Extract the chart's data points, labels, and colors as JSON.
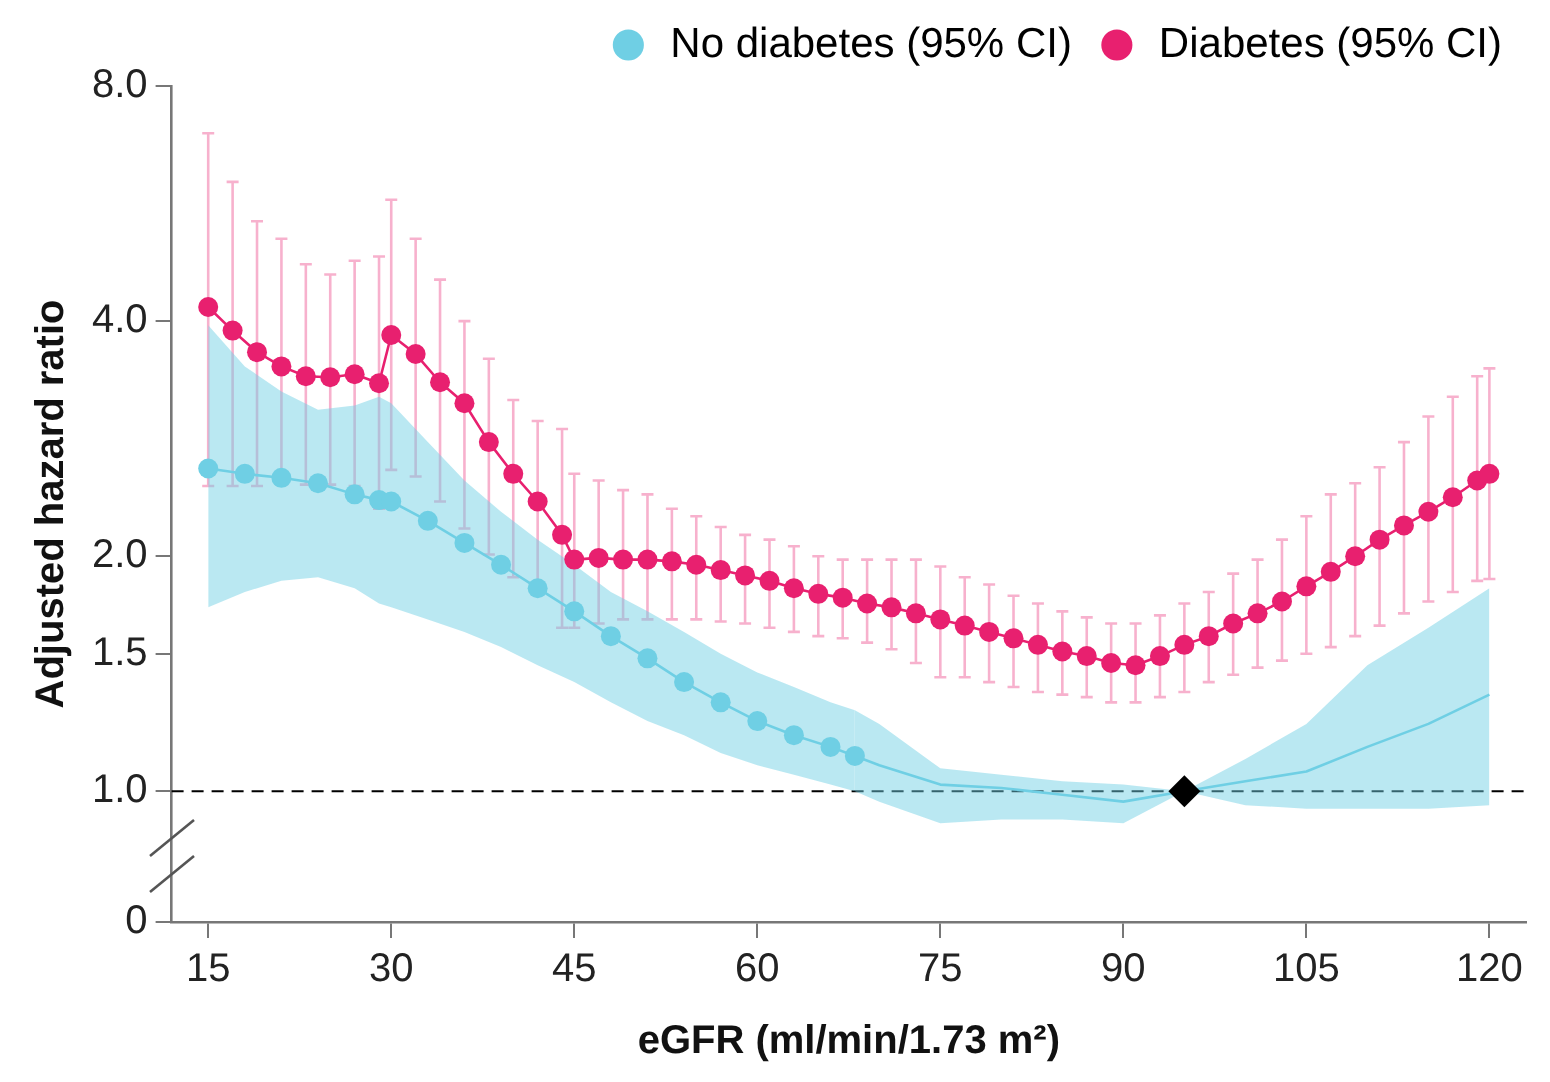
{
  "chart_data": {
    "type": "line",
    "xlabel": "eGFR (ml/min/1.73 m²)",
    "ylabel": "Adjusted hazard ratio",
    "log": "y",
    "legend": "top right",
    "xlim": [
      12,
      123
    ],
    "xticks": [
      15,
      30,
      45,
      60,
      75,
      90,
      105,
      120
    ],
    "ylim": [
      0,
      8
    ],
    "yticks": [
      0,
      {
        "value": 1,
        "label": "1.0"
      },
      {
        "value": 1.5,
        "label": "1.5"
      },
      {
        "value": 2,
        "label": "2.0"
      },
      {
        "value": 4,
        "label": "4.0"
      },
      {
        "value": 8,
        "label": "8.0"
      }
    ],
    "ref_lines": [
      {
        "axis": "y",
        "value": 1,
        "line_style": "dashed",
        "color": "#000000"
      }
    ],
    "series": [
      {
        "name": "No diabetes (95% CI)",
        "color": "#6fcfe4",
        "marker": "circle",
        "x": [
          15,
          18,
          21,
          24,
          27,
          29,
          30,
          33,
          36,
          39,
          42,
          45,
          48,
          51,
          54,
          57,
          60,
          63,
          66,
          68
        ],
        "values": [
          2.59,
          2.55,
          2.52,
          2.48,
          2.4,
          2.36,
          2.35,
          2.22,
          2.08,
          1.95,
          1.82,
          1.7,
          1.58,
          1.48,
          1.38,
          1.3,
          1.23,
          1.18,
          1.14,
          1.11
        ],
        "lower": [
          1.72,
          1.8,
          1.86,
          1.88,
          1.82,
          1.74,
          1.72,
          1.66,
          1.6,
          1.53,
          1.45,
          1.38,
          1.3,
          1.23,
          1.18,
          1.12,
          1.08,
          1.05,
          1.02,
          1.0
        ],
        "upper": [
          3.95,
          3.5,
          3.25,
          3.08,
          3.12,
          3.2,
          3.14,
          2.8,
          2.5,
          2.28,
          2.1,
          1.95,
          1.8,
          1.7,
          1.6,
          1.5,
          1.42,
          1.36,
          1.3,
          1.27
        ]
      },
      {
        "color": "#6fcfe4",
        "marker": "none",
        "x": [
          68,
          70,
          75,
          80,
          85,
          90,
          95,
          100,
          105,
          110,
          115,
          120
        ],
        "values": [
          1.11,
          1.08,
          1.02,
          1.01,
          0.99,
          0.97,
          1.0,
          1.03,
          1.06,
          1.14,
          1.22,
          1.33
        ],
        "lower": [
          1.0,
          0.97,
          0.91,
          0.92,
          0.92,
          0.91,
          1.0,
          0.96,
          0.95,
          0.95,
          0.95,
          0.96
        ],
        "upper": [
          1.27,
          1.22,
          1.07,
          1.05,
          1.03,
          1.02,
          1.0,
          1.1,
          1.22,
          1.45,
          1.62,
          1.82
        ]
      },
      {
        "name": "Diabetes (95% CI)",
        "color": "#e8206f",
        "marker": "circle",
        "x": [
          15,
          17,
          19,
          21,
          23,
          25,
          27,
          29,
          30,
          32,
          34,
          36,
          38,
          40,
          42,
          44,
          45,
          47,
          49,
          51,
          53,
          55,
          57,
          59,
          61,
          63,
          65,
          67,
          69,
          71,
          73,
          75,
          77,
          79,
          81,
          83,
          85,
          87,
          89,
          91,
          93,
          95,
          97,
          99,
          101,
          103,
          105,
          107,
          109,
          111,
          113,
          115,
          117,
          119,
          120
        ],
        "values": [
          4.17,
          3.89,
          3.65,
          3.5,
          3.4,
          3.39,
          3.42,
          3.33,
          3.84,
          3.63,
          3.34,
          3.14,
          2.8,
          2.55,
          2.35,
          2.13,
          1.98,
          1.99,
          1.98,
          1.98,
          1.97,
          1.95,
          1.92,
          1.89,
          1.86,
          1.82,
          1.79,
          1.77,
          1.74,
          1.72,
          1.69,
          1.66,
          1.63,
          1.6,
          1.57,
          1.54,
          1.51,
          1.49,
          1.46,
          1.45,
          1.49,
          1.54,
          1.58,
          1.64,
          1.69,
          1.75,
          1.83,
          1.91,
          2.0,
          2.1,
          2.19,
          2.28,
          2.38,
          2.5,
          2.55
        ],
        "errors": [
          [
            2.46,
            6.96
          ],
          [
            2.46,
            6.03
          ],
          [
            2.46,
            5.37
          ],
          [
            2.47,
            5.1
          ],
          [
            2.47,
            4.73
          ],
          [
            2.47,
            4.59
          ],
          [
            2.46,
            4.78
          ],
          [
            2.3,
            4.84
          ],
          [
            2.58,
            5.72
          ],
          [
            2.53,
            5.1
          ],
          [
            2.35,
            4.52
          ],
          [
            2.17,
            4.0
          ],
          [
            2.01,
            3.58
          ],
          [
            1.88,
            3.17
          ],
          [
            1.8,
            2.98
          ],
          [
            1.62,
            2.91
          ],
          [
            1.62,
            2.55
          ],
          [
            1.64,
            2.5
          ],
          [
            1.66,
            2.43
          ],
          [
            1.66,
            2.4
          ],
          [
            1.66,
            2.3
          ],
          [
            1.66,
            2.25
          ],
          [
            1.65,
            2.18
          ],
          [
            1.64,
            2.13
          ],
          [
            1.62,
            2.1
          ],
          [
            1.6,
            2.06
          ],
          [
            1.58,
            2.0
          ],
          [
            1.57,
            1.98
          ],
          [
            1.55,
            1.98
          ],
          [
            1.52,
            1.98
          ],
          [
            1.46,
            1.98
          ],
          [
            1.4,
            1.94
          ],
          [
            1.4,
            1.88
          ],
          [
            1.38,
            1.84
          ],
          [
            1.36,
            1.78
          ],
          [
            1.34,
            1.74
          ],
          [
            1.33,
            1.7
          ],
          [
            1.32,
            1.67
          ],
          [
            1.3,
            1.64
          ],
          [
            1.3,
            1.64
          ],
          [
            1.32,
            1.68
          ],
          [
            1.34,
            1.74
          ],
          [
            1.38,
            1.8
          ],
          [
            1.41,
            1.9
          ],
          [
            1.44,
            1.98
          ],
          [
            1.47,
            2.1
          ],
          [
            1.5,
            2.25
          ],
          [
            1.53,
            2.4
          ],
          [
            1.58,
            2.48
          ],
          [
            1.63,
            2.6
          ],
          [
            1.69,
            2.8
          ],
          [
            1.75,
            3.02
          ],
          [
            1.8,
            3.2
          ],
          [
            1.86,
            3.4
          ],
          [
            1.87,
            3.48
          ]
        ]
      },
      {
        "type": "scatter",
        "color": "#000000",
        "marker": "diamond",
        "x": [
          95
        ],
        "values": [
          1.0
        ]
      }
    ]
  }
}
